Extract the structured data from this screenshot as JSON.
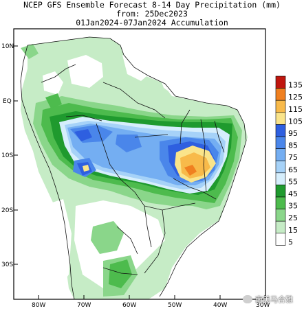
{
  "title": {
    "line1": "NCEP GFS Ensemble Forecast 8-14 Day Precipitation (mm)",
    "line2": "from: 25Dec2023",
    "line3": "01Jan2024-07Jan2024 Accumulation"
  },
  "axes": {
    "lat_ticks": [
      "10N",
      "EQ",
      "10S",
      "20S",
      "30S"
    ],
    "lon_ticks": [
      "80W",
      "70W",
      "60W",
      "50W",
      "40W",
      "30W"
    ]
  },
  "legend": {
    "levels": [
      {
        "label": "135",
        "color": "#c0160e"
      },
      {
        "label": "125",
        "color": "#f08020"
      },
      {
        "label": "115",
        "color": "#f8ba4a"
      },
      {
        "label": "105",
        "color": "#fae48a"
      },
      {
        "label": "95",
        "color": "#2e5fe0"
      },
      {
        "label": "85",
        "color": "#4a86ea"
      },
      {
        "label": "75",
        "color": "#74aef2"
      },
      {
        "label": "65",
        "color": "#a6d2f8"
      },
      {
        "label": "55",
        "color": "#d6eefc"
      },
      {
        "label": "45",
        "color": "#1f9a2e"
      },
      {
        "label": "35",
        "color": "#4dbb4d"
      },
      {
        "label": "25",
        "color": "#8ad68a"
      },
      {
        "label": "15",
        "color": "#c6ecc6"
      },
      {
        "label": "5",
        "color": "#ffffff"
      }
    ]
  },
  "watermark": {
    "text": "南美马合雅"
  }
}
